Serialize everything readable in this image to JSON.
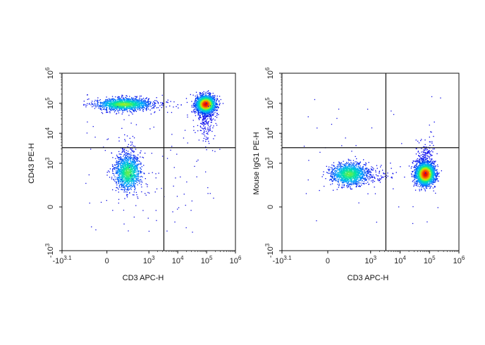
{
  "chart_data": [
    {
      "type": "scatter",
      "subtype": "flow-cytometry-density-dot-plot",
      "xlabel": "CD3 APC-H",
      "ylabel": "CD43 PE-H",
      "x_scale": "biexponential",
      "y_scale": "biexponential",
      "xlim": [
        -1259,
        1000000
      ],
      "ylim": [
        -1000,
        1000000
      ],
      "x_ticks": [
        {
          "base": "-10",
          "exp": "3.1",
          "value": -1259
        },
        {
          "base": "0",
          "exp": "",
          "value": 0
        },
        {
          "base": "10",
          "exp": "3",
          "value": 1000
        },
        {
          "base": "10",
          "exp": "4",
          "value": 10000
        },
        {
          "base": "10",
          "exp": "5",
          "value": 100000
        },
        {
          "base": "10",
          "exp": "6",
          "value": 1000000
        }
      ],
      "y_ticks": [
        {
          "base": "-10",
          "exp": "3",
          "value": -1000
        },
        {
          "base": "0",
          "exp": "",
          "value": 0
        },
        {
          "base": "10",
          "exp": "3",
          "value": 1000
        },
        {
          "base": "10",
          "exp": "4",
          "value": 10000
        },
        {
          "base": "10",
          "exp": "5",
          "value": 100000
        },
        {
          "base": "10",
          "exp": "6",
          "value": 1000000
        }
      ],
      "quadrant_gate": {
        "x": 3300,
        "y": 3300
      },
      "grid": false,
      "color_scale": [
        "#0000ee",
        "#00a8ff",
        "#00e6a0",
        "#c8f000",
        "#ff6a00",
        "#e60000"
      ],
      "populations": [
        {
          "x_center": 90000,
          "y_center": 95000,
          "relative_size": 1.0,
          "peak_density": "high"
        },
        {
          "x_center": 200,
          "y_center": 95000,
          "relative_size": 0.6,
          "peak_density": "medium"
        },
        {
          "x_center": 250,
          "y_center": 500,
          "relative_size": 0.5,
          "peak_density": "medium"
        }
      ]
    },
    {
      "type": "scatter",
      "subtype": "flow-cytometry-density-dot-plot",
      "xlabel": "CD3 APC-H",
      "ylabel": "Mouse IgG1 PE-H",
      "x_scale": "biexponential",
      "y_scale": "biexponential",
      "xlim": [
        -1259,
        1000000
      ],
      "ylim": [
        -1000,
        1000000
      ],
      "x_ticks": [
        {
          "base": "-10",
          "exp": "3.1",
          "value": -1259
        },
        {
          "base": "0",
          "exp": "",
          "value": 0
        },
        {
          "base": "10",
          "exp": "3",
          "value": 1000
        },
        {
          "base": "10",
          "exp": "4",
          "value": 10000
        },
        {
          "base": "10",
          "exp": "5",
          "value": 100000
        },
        {
          "base": "10",
          "exp": "6",
          "value": 1000000
        }
      ],
      "y_ticks": [
        {
          "base": "-10",
          "exp": "3",
          "value": -1000
        },
        {
          "base": "0",
          "exp": "",
          "value": 0
        },
        {
          "base": "10",
          "exp": "3",
          "value": 1000
        },
        {
          "base": "10",
          "exp": "4",
          "value": 10000
        },
        {
          "base": "10",
          "exp": "5",
          "value": 100000
        },
        {
          "base": "10",
          "exp": "6",
          "value": 1000000
        }
      ],
      "quadrant_gate": {
        "x": 3300,
        "y": 3300
      },
      "grid": false,
      "color_scale": [
        "#0000ee",
        "#00a8ff",
        "#00e6a0",
        "#c8f000",
        "#ff6a00",
        "#e60000"
      ],
      "populations": [
        {
          "x_center": 70000,
          "y_center": 450,
          "relative_size": 1.0,
          "peak_density": "high"
        },
        {
          "x_center": 250,
          "y_center": 450,
          "relative_size": 0.55,
          "peak_density": "medium"
        }
      ]
    }
  ]
}
